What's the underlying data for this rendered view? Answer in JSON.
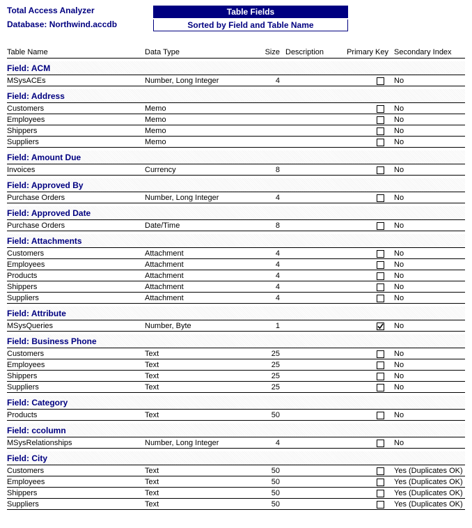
{
  "header": {
    "app_title": "Total Access Analyzer",
    "database_label": "Database: Northwind.accdb",
    "report_title": "Table Fields",
    "report_subtitle": "Sorted by Field and Table Name"
  },
  "columns": {
    "table": "Table Name",
    "type": "Data Type",
    "size": "Size",
    "desc": "Description",
    "pk": "Primary Key",
    "si": "Secondary Index"
  },
  "groups": [
    {
      "label": "Field: ACM",
      "rows": [
        {
          "table": "MSysACEs",
          "type": "Number, Long Integer",
          "size": "4",
          "pk": false,
          "si": "No"
        }
      ]
    },
    {
      "label": "Field: Address",
      "rows": [
        {
          "table": "Customers",
          "type": "Memo",
          "size": "",
          "pk": false,
          "si": "No"
        },
        {
          "table": "Employees",
          "type": "Memo",
          "size": "",
          "pk": false,
          "si": "No"
        },
        {
          "table": "Shippers",
          "type": "Memo",
          "size": "",
          "pk": false,
          "si": "No"
        },
        {
          "table": "Suppliers",
          "type": "Memo",
          "size": "",
          "pk": false,
          "si": "No"
        }
      ]
    },
    {
      "label": "Field: Amount Due",
      "rows": [
        {
          "table": "Invoices",
          "type": "Currency",
          "size": "8",
          "pk": false,
          "si": "No"
        }
      ]
    },
    {
      "label": "Field: Approved By",
      "rows": [
        {
          "table": "Purchase Orders",
          "type": "Number, Long Integer",
          "size": "4",
          "pk": false,
          "si": "No"
        }
      ]
    },
    {
      "label": "Field: Approved Date",
      "rows": [
        {
          "table": "Purchase Orders",
          "type": "Date/Time",
          "size": "8",
          "pk": false,
          "si": "No"
        }
      ]
    },
    {
      "label": "Field: Attachments",
      "rows": [
        {
          "table": "Customers",
          "type": "Attachment",
          "size": "4",
          "pk": false,
          "si": "No"
        },
        {
          "table": "Employees",
          "type": "Attachment",
          "size": "4",
          "pk": false,
          "si": "No"
        },
        {
          "table": "Products",
          "type": "Attachment",
          "size": "4",
          "pk": false,
          "si": "No"
        },
        {
          "table": "Shippers",
          "type": "Attachment",
          "size": "4",
          "pk": false,
          "si": "No"
        },
        {
          "table": "Suppliers",
          "type": "Attachment",
          "size": "4",
          "pk": false,
          "si": "No"
        }
      ]
    },
    {
      "label": "Field: Attribute",
      "rows": [
        {
          "table": "MSysQueries",
          "type": "Number, Byte",
          "size": "1",
          "pk": true,
          "si": "No"
        }
      ]
    },
    {
      "label": "Field: Business Phone",
      "rows": [
        {
          "table": "Customers",
          "type": "Text",
          "size": "25",
          "pk": false,
          "si": "No"
        },
        {
          "table": "Employees",
          "type": "Text",
          "size": "25",
          "pk": false,
          "si": "No"
        },
        {
          "table": "Shippers",
          "type": "Text",
          "size": "25",
          "pk": false,
          "si": "No"
        },
        {
          "table": "Suppliers",
          "type": "Text",
          "size": "25",
          "pk": false,
          "si": "No"
        }
      ]
    },
    {
      "label": "Field: Category",
      "rows": [
        {
          "table": "Products",
          "type": "Text",
          "size": "50",
          "pk": false,
          "si": "No"
        }
      ]
    },
    {
      "label": "Field: ccolumn",
      "rows": [
        {
          "table": "MSysRelationships",
          "type": "Number, Long Integer",
          "size": "4",
          "pk": false,
          "si": "No"
        }
      ]
    },
    {
      "label": "Field: City",
      "rows": [
        {
          "table": "Customers",
          "type": "Text",
          "size": "50",
          "pk": false,
          "si": "Yes (Duplicates OK)"
        },
        {
          "table": "Employees",
          "type": "Text",
          "size": "50",
          "pk": false,
          "si": "Yes (Duplicates OK)"
        },
        {
          "table": "Shippers",
          "type": "Text",
          "size": "50",
          "pk": false,
          "si": "Yes (Duplicates OK)"
        },
        {
          "table": "Suppliers",
          "type": "Text",
          "size": "50",
          "pk": false,
          "si": "Yes (Duplicates OK)"
        }
      ]
    }
  ]
}
